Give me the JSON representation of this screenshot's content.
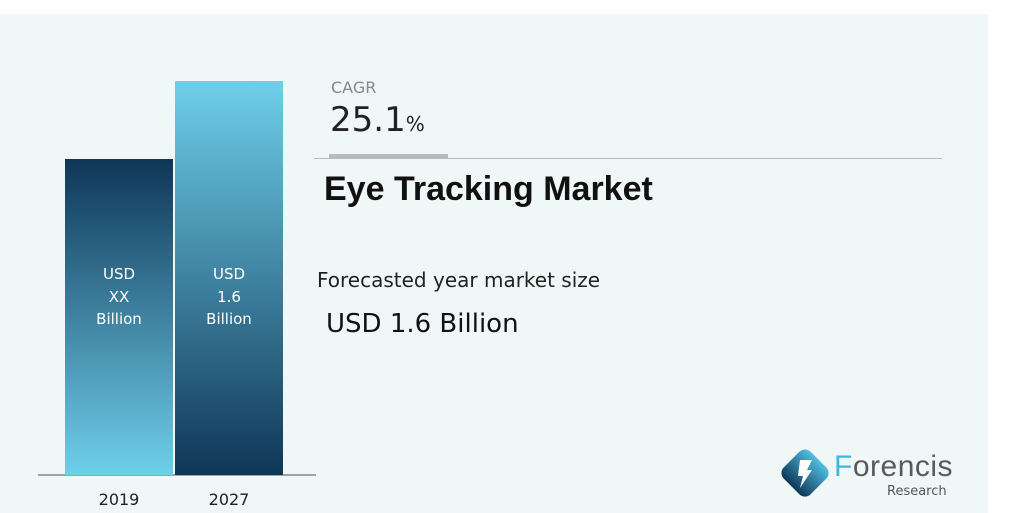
{
  "chart_data": {
    "type": "bar",
    "categories": [
      "2019",
      "2027"
    ],
    "values": [
      null,
      1.6
    ],
    "unit": "USD Billion",
    "data_labels": [
      "USD\nXX\nBillion",
      "USD\n1.6\nBillion"
    ],
    "colors": {
      "dark": "#0f3657",
      "light": "#6fcfea"
    }
  },
  "info": {
    "cagr_label": "CAGR",
    "cagr_value": "25.1",
    "cagr_unit": "%",
    "title": "Eye Tracking Market",
    "forecast_label": "Forecasted year market size",
    "forecast_value": "USD 1.6 Billion"
  },
  "logo": {
    "brand_first": "F",
    "brand_rest": "orencis",
    "brand_sub": "Research"
  }
}
